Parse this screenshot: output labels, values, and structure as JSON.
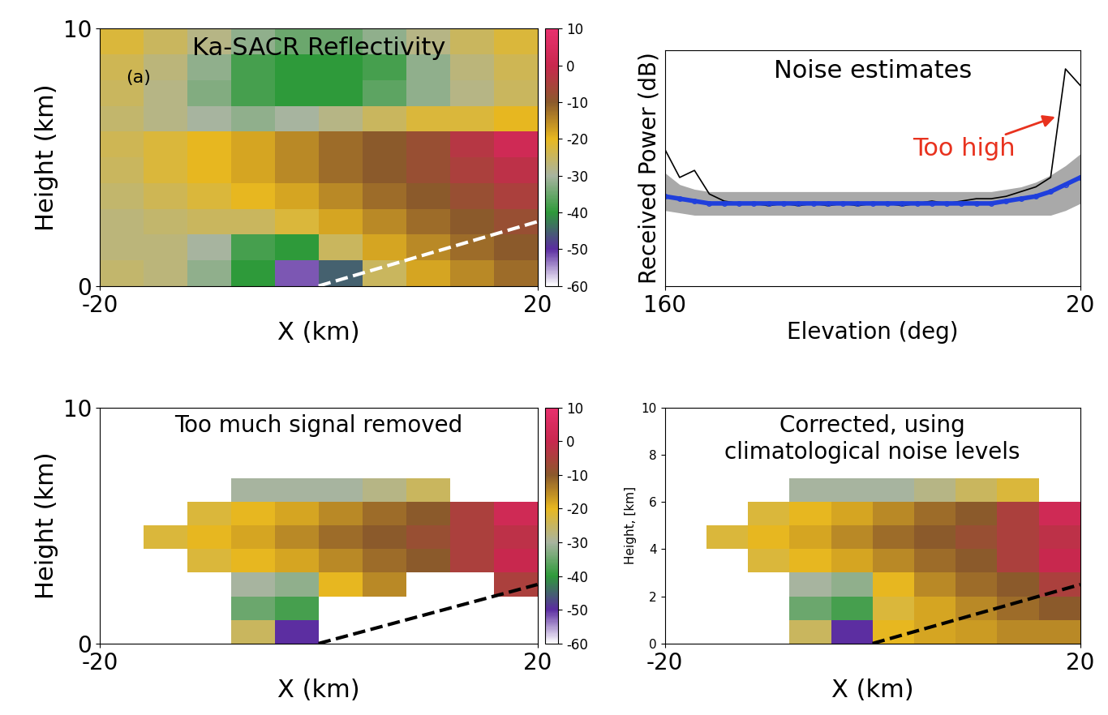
{
  "chart_data": [
    {
      "type": "heatmap",
      "title": "Ka-SACR Reflectivity",
      "panel_label": "(a)",
      "x_label": "X (km)",
      "y_label": "Height (km)",
      "x_edges": [
        -20,
        -16,
        -12,
        -8,
        -4,
        0,
        4,
        8,
        12,
        16,
        20
      ],
      "y_edges": [
        0,
        1,
        2,
        3,
        4,
        5,
        6,
        7,
        8,
        9,
        10
      ],
      "cells": [
        [
          -26,
          -27,
          -32,
          -40,
          -52,
          -45,
          -25,
          -18,
          -15,
          -12
        ],
        [
          -27,
          -27,
          -30,
          -38,
          -40,
          -25,
          -18,
          -15,
          -12,
          -10
        ],
        [
          -27,
          -26,
          -25,
          -25,
          -22,
          -18,
          -15,
          -12,
          -10,
          -8
        ],
        [
          -26,
          -24,
          -22,
          -20,
          -18,
          -15,
          -12,
          -10,
          -8,
          -5
        ],
        [
          -25,
          -22,
          -20,
          -18,
          -15,
          -12,
          -10,
          -8,
          -5,
          -2
        ],
        [
          -24,
          -22,
          -20,
          -18,
          -15,
          -12,
          -10,
          -8,
          -3,
          2
        ],
        [
          -26,
          -28,
          -30,
          -32,
          -30,
          -28,
          -25,
          -22,
          -22,
          -20
        ],
        [
          -25,
          -28,
          -33,
          -38,
          -40,
          -40,
          -36,
          -32,
          -28,
          -25
        ],
        [
          -24,
          -27,
          -32,
          -38,
          -40,
          -40,
          -38,
          -32,
          -27,
          -24
        ],
        [
          -22,
          -25,
          -28,
          -32,
          -35,
          -35,
          -32,
          -28,
          -25,
          -22
        ]
      ],
      "clim": [
        -60,
        10
      ],
      "cticks": [
        10,
        0,
        -10,
        -20,
        -30,
        -40,
        -50,
        -60
      ],
      "xlim": [
        -20,
        20
      ],
      "ylim": [
        0,
        10
      ],
      "xticks": [
        -20,
        20
      ],
      "yticks": [
        0,
        10
      ],
      "reference_line": {
        "x": [
          0,
          20
        ],
        "y": [
          0,
          2.5
        ],
        "color": "#ffffff",
        "line_style": "dashed"
      }
    },
    {
      "type": "line",
      "title": "Noise estimates",
      "x_label": "Elevation (deg)",
      "y_label": "Received Power (dB)",
      "x": [
        160,
        155,
        150,
        145,
        140,
        135,
        130,
        125,
        120,
        115,
        110,
        105,
        100,
        95,
        90,
        85,
        80,
        75,
        70,
        65,
        60,
        55,
        50,
        45,
        40,
        35,
        30,
        25,
        20
      ],
      "series": [
        {
          "color": "#000000",
          "values": [
            5.8,
            4.6,
            4.9,
            3.9,
            3.6,
            3.5,
            3.5,
            3.4,
            3.5,
            3.4,
            3.5,
            3.4,
            3.5,
            3.4,
            3.5,
            3.5,
            3.4,
            3.5,
            3.6,
            3.5,
            3.6,
            3.7,
            3.7,
            3.8,
            4.0,
            4.2,
            4.6,
            9.2,
            8.5
          ]
        },
        {
          "color": "#1f3fdc",
          "marker": "o",
          "values": [
            3.8,
            3.7,
            3.6,
            3.5,
            3.5,
            3.5,
            3.5,
            3.5,
            3.5,
            3.5,
            3.5,
            3.5,
            3.5,
            3.5,
            3.5,
            3.5,
            3.5,
            3.5,
            3.5,
            3.5,
            3.5,
            3.5,
            3.5,
            3.6,
            3.7,
            3.8,
            4.0,
            4.3,
            4.6
          ]
        }
      ],
      "band": {
        "color": "#9a9a9a",
        "lower": [
          3.2,
          3.1,
          3.0,
          3.0,
          3.0,
          3.0,
          3.0,
          3.0,
          3.0,
          3.0,
          3.0,
          3.0,
          3.0,
          3.0,
          3.0,
          3.0,
          3.0,
          3.0,
          3.0,
          3.0,
          3.0,
          3.0,
          3.0,
          3.0,
          3.0,
          3.0,
          3.0,
          3.2,
          3.5
        ],
        "upper": [
          4.8,
          4.3,
          4.1,
          4.0,
          4.0,
          4.0,
          4.0,
          4.0,
          4.0,
          4.0,
          4.0,
          4.0,
          4.0,
          4.0,
          4.0,
          4.0,
          4.0,
          4.0,
          4.0,
          4.0,
          4.0,
          4.0,
          4.0,
          4.1,
          4.2,
          4.4,
          4.7,
          5.1,
          5.6
        ]
      },
      "xlim": [
        160,
        20
      ],
      "ylim": [
        0,
        10
      ],
      "xticks": [
        160,
        20
      ],
      "yticks": [],
      "tick_labels": "x",
      "annotations": [
        {
          "text": "Too high",
          "color": "#e8321e"
        }
      ]
    },
    {
      "type": "heatmap",
      "title": "Too much signal removed",
      "x_label": "X (km)",
      "y_label": "Height (km)",
      "x_edges": [
        -20,
        -16,
        -12,
        -8,
        -4,
        0,
        4,
        8,
        12,
        16,
        20
      ],
      "y_edges": [
        0,
        1,
        2,
        3,
        4,
        5,
        6,
        7,
        8,
        9,
        10
      ],
      "cells": [
        [
          null,
          null,
          null,
          -25,
          -50,
          null,
          null,
          null,
          null,
          null
        ],
        [
          null,
          null,
          null,
          -35,
          -38,
          null,
          null,
          null,
          null,
          null
        ],
        [
          null,
          null,
          null,
          -30,
          -32,
          -20,
          -15,
          null,
          null,
          -5
        ],
        [
          null,
          null,
          -22,
          -20,
          -18,
          -15,
          -12,
          -10,
          -5,
          0
        ],
        [
          null,
          -22,
          -20,
          -18,
          -15,
          -12,
          -10,
          -8,
          -5,
          -2
        ],
        [
          null,
          null,
          -22,
          -20,
          -18,
          -15,
          -12,
          -10,
          -5,
          2
        ],
        [
          null,
          null,
          null,
          -30,
          -30,
          -30,
          -28,
          -25,
          null,
          null
        ],
        [
          null,
          null,
          null,
          null,
          null,
          null,
          null,
          null,
          null,
          null
        ],
        [
          null,
          null,
          null,
          null,
          null,
          null,
          null,
          null,
          null,
          null
        ],
        [
          null,
          null,
          null,
          null,
          null,
          null,
          null,
          null,
          null,
          null
        ]
      ],
      "clim": [
        -60,
        10
      ],
      "cticks": [
        10,
        0,
        -10,
        -20,
        -30,
        -40,
        -50,
        -60
      ],
      "xlim": [
        -20,
        20
      ],
      "ylim": [
        0,
        10
      ],
      "xticks": [
        -20,
        20
      ],
      "yticks": [
        0,
        10
      ],
      "reference_line": {
        "x": [
          0,
          20
        ],
        "y": [
          0,
          2.5
        ],
        "color": "#000000",
        "line_style": "dashed"
      }
    },
    {
      "type": "heatmap",
      "title": "Corrected, using\nclimatological noise levels",
      "x_label": "X (km)",
      "y_label": "Height, [km]",
      "x_edges": [
        -20,
        -16,
        -12,
        -8,
        -4,
        0,
        4,
        8,
        12,
        16,
        20
      ],
      "y_edges": [
        0,
        1,
        2,
        3,
        4,
        5,
        6,
        7,
        8,
        9,
        10
      ],
      "cells": [
        [
          null,
          null,
          null,
          -25,
          -50,
          -20,
          -18,
          -17,
          -15,
          -15
        ],
        [
          null,
          null,
          null,
          -35,
          -38,
          -22,
          -18,
          -15,
          -12,
          -10
        ],
        [
          null,
          null,
          null,
          -30,
          -32,
          -20,
          -15,
          -12,
          -10,
          -5
        ],
        [
          null,
          null,
          -22,
          -20,
          -18,
          -15,
          -12,
          -10,
          -5,
          0
        ],
        [
          null,
          -22,
          -20,
          -18,
          -15,
          -12,
          -10,
          -8,
          -5,
          -2
        ],
        [
          null,
          null,
          -22,
          -20,
          -18,
          -15,
          -12,
          -10,
          -5,
          2
        ],
        [
          null,
          null,
          null,
          -30,
          -30,
          -30,
          -28,
          -25,
          -22,
          null
        ],
        [
          null,
          null,
          null,
          null,
          null,
          null,
          null,
          null,
          null,
          null
        ],
        [
          null,
          null,
          null,
          null,
          null,
          null,
          null,
          null,
          null,
          null
        ],
        [
          null,
          null,
          null,
          null,
          null,
          null,
          null,
          null,
          null,
          null
        ]
      ],
      "clim": [
        -60,
        10
      ],
      "xlim": [
        -20,
        20
      ],
      "ylim": [
        0,
        10
      ],
      "xticks": [
        -20,
        20
      ],
      "yticks": [
        0,
        2,
        4,
        6,
        8,
        10
      ],
      "reference_line": {
        "x": [
          0,
          20
        ],
        "y": [
          0,
          2.5
        ],
        "color": "#000000",
        "line_style": "dashed"
      }
    }
  ]
}
